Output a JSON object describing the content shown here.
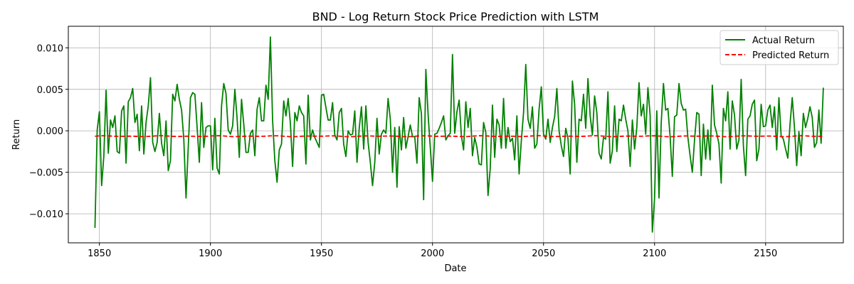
{
  "chart_data": {
    "type": "line",
    "title": "BND - Log Return Stock Price Prediction with LSTM",
    "xlabel": "Date",
    "ylabel": "Return",
    "xlim": [
      1836,
      2185
    ],
    "ylim": [
      -0.0135,
      0.0126
    ],
    "x_ticks": [
      1850,
      1900,
      1950,
      2000,
      2050,
      2100,
      2150
    ],
    "y_ticks": [
      -0.01,
      -0.005,
      0.0,
      0.005,
      0.01
    ],
    "x_tick_labels": [
      "1850",
      "1900",
      "1950",
      "2000",
      "2050",
      "2100",
      "2150"
    ],
    "y_tick_labels": [
      "−0.010",
      "−0.005",
      "0.000",
      "0.005",
      "0.010"
    ],
    "grid": true,
    "legend_position": "top-right",
    "series": [
      {
        "name": "Actual Return",
        "color": "#008000",
        "style": "solid",
        "x_start": 1848,
        "x_step": 1,
        "values": [
          -0.0117,
          0.0001,
          0.0023,
          -0.0066,
          -0.003,
          0.0049,
          -0.0027,
          0.0013,
          0.0004,
          0.0018,
          -0.0025,
          -0.0027,
          0.0024,
          0.003,
          -0.0039,
          0.0035,
          0.004,
          0.0051,
          0.001,
          0.002,
          -0.0024,
          0.003,
          -0.0028,
          0.001,
          0.003,
          0.0064,
          -0.0014,
          -0.0025,
          -0.0014,
          0.0021,
          -0.0015,
          -0.003,
          0.0012,
          -0.0048,
          -0.0036,
          0.0044,
          0.0036,
          0.0056,
          0.0038,
          0.0025,
          -0.001,
          -0.0081,
          -0.002,
          0.004,
          0.0046,
          0.0044,
          0.0004,
          -0.0038,
          0.0034,
          -0.002,
          0.0004,
          0.0006,
          0.0006,
          -0.0047,
          0.0015,
          -0.0045,
          -0.0052,
          0.003,
          0.0057,
          0.0045,
          0.0001,
          -0.0004,
          0.0006,
          0.005,
          0.0015,
          -0.0032,
          0.0038,
          0.0008,
          -0.0026,
          -0.0026,
          -0.0003,
          0.0001,
          -0.003,
          0.0026,
          0.004,
          0.0012,
          0.0012,
          0.0055,
          0.0038,
          0.0113,
          0.0012,
          -0.0036,
          -0.0062,
          -0.0023,
          -0.0016,
          0.0036,
          0.0018,
          0.0039,
          0.0009,
          -0.0043,
          0.0022,
          0.0012,
          0.003,
          0.0022,
          0.0018,
          -0.004,
          0.0043,
          -0.0011,
          0.0001,
          -0.0008,
          -0.0014,
          -0.002,
          0.0043,
          0.0044,
          0.0028,
          0.0013,
          0.0013,
          0.0034,
          -0.0005,
          -0.0011,
          0.0022,
          0.0027,
          -0.0016,
          -0.0031,
          0.0,
          -0.0005,
          -0.0004,
          0.0024,
          -0.0038,
          0.0003,
          0.0029,
          -0.0022,
          0.003,
          -0.0014,
          -0.0038,
          -0.0066,
          -0.0038,
          0.0015,
          -0.0028,
          -0.0004,
          0.0001,
          -0.0003,
          0.0039,
          0.0014,
          -0.005,
          0.0004,
          -0.0068,
          0.0005,
          -0.0023,
          0.0016,
          -0.0021,
          -0.0007,
          0.0007,
          -0.0007,
          -0.0007,
          -0.0039,
          0.004,
          0.0021,
          -0.0083,
          0.0074,
          0.002,
          -0.002,
          -0.0061,
          -0.0004,
          -0.0003,
          0.0003,
          0.001,
          0.0018,
          -0.0011,
          -0.0006,
          -0.0003,
          0.0092,
          -0.0003,
          0.0023,
          0.0037,
          -0.0006,
          -0.0023,
          0.0035,
          0.0004,
          0.0027,
          -0.003,
          -0.0008,
          -0.002,
          -0.004,
          -0.0041,
          0.001,
          -0.0002,
          -0.0078,
          -0.0045,
          0.0031,
          -0.0032,
          0.0014,
          0.0007,
          -0.0021,
          0.0039,
          -0.0021,
          0.0004,
          -0.0013,
          -0.0009,
          -0.0035,
          0.0018,
          -0.0052,
          -0.0012,
          0.0022,
          0.008,
          0.0014,
          0.0003,
          0.0029,
          -0.0021,
          -0.0016,
          0.0026,
          0.0053,
          -0.0004,
          -0.001,
          0.0014,
          -0.0014,
          0.0004,
          0.0017,
          0.0051,
          0.0,
          -0.0018,
          -0.0031,
          0.0003,
          -0.0009,
          -0.0052,
          0.006,
          0.0032,
          -0.0038,
          0.0014,
          0.0012,
          0.0044,
          0.0003,
          0.0063,
          0.0018,
          -0.0005,
          0.0042,
          0.0022,
          -0.0027,
          -0.0034,
          -0.0008,
          -0.001,
          0.0047,
          -0.0039,
          -0.0024,
          0.003,
          -0.0025,
          0.0014,
          0.0012,
          0.0031,
          0.0014,
          0.0,
          -0.0043,
          0.0013,
          -0.0022,
          0.0004,
          0.0058,
          0.0018,
          0.0032,
          -0.0004,
          0.0052,
          0.0019,
          -0.0122,
          -0.0081,
          0.0024,
          -0.0081,
          0.001,
          0.0057,
          0.0025,
          0.0027,
          -0.0007,
          -0.0055,
          0.0017,
          0.0019,
          0.0057,
          0.0033,
          0.0025,
          0.0026,
          -0.0008,
          -0.003,
          -0.005,
          -0.0011,
          0.0022,
          0.002,
          -0.0054,
          0.0008,
          -0.0034,
          0.0001,
          -0.0035,
          0.0055,
          0.0007,
          -0.0003,
          -0.0016,
          -0.0063,
          0.0027,
          0.0012,
          0.0047,
          -0.0022,
          0.0036,
          0.0019,
          -0.0022,
          -0.0011,
          0.0062,
          -0.0018,
          -0.0054,
          0.0014,
          0.0018,
          0.0032,
          0.0037,
          -0.0036,
          -0.0022,
          0.0032,
          0.0005,
          0.0006,
          0.0025,
          0.0031,
          0.0004,
          0.0029,
          -0.0023,
          0.004,
          -0.0006,
          -0.001,
          -0.0022,
          -0.0033,
          0.0008,
          0.004,
          0.0004,
          -0.0042,
          -0.0001,
          -0.003,
          0.0021,
          0.0004,
          0.0015,
          0.0029,
          0.0016,
          -0.002,
          -0.0014,
          0.0025,
          -0.0015,
          0.0052
        ]
      },
      {
        "name": "Predicted Return",
        "color": "#ff0000",
        "style": "dashed",
        "x_start": 1848,
        "x_step": 1,
        "base": -0.00065,
        "amplitude": 6e-05
      }
    ]
  }
}
